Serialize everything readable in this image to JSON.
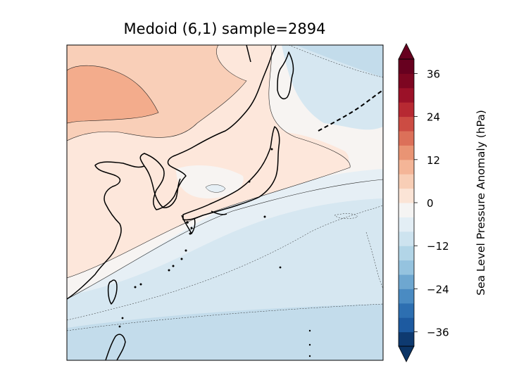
{
  "title": "Medoid (6,1) sample=2894",
  "colorbar": {
    "label": "Sea Level Pressure Anomaly (hPa)",
    "ticks": [
      "36",
      "24",
      "12",
      "0",
      "−12",
      "−24",
      "−36"
    ],
    "colors": [
      "#0e3a70",
      "#1d5aa0",
      "#2d6fb1",
      "#4a8bc2",
      "#6ea7d0",
      "#95c3df",
      "#b2d5e7",
      "#cde3ef",
      "#e3eef5",
      "#f5f4f3",
      "#fbe4d6",
      "#f8ceb6",
      "#f4b597",
      "#e99474",
      "#dc7059",
      "#cc4c43",
      "#b72932",
      "#9b1128",
      "#7d0621",
      "#67001f"
    ]
  },
  "map": {
    "region": "East Asia (Japan, Korea, eastern China, Taiwan)",
    "anomaly_colors": {
      "pos_strong": "#f3ac8c",
      "pos_medium": "#f9cfb8",
      "pos_weak": "#fde7db",
      "near_zero": "#f7f4f2",
      "neg_weak": "#e6eff5",
      "neg_medium": "#d6e7f1",
      "neg_strong": "#c3dceb"
    }
  }
}
